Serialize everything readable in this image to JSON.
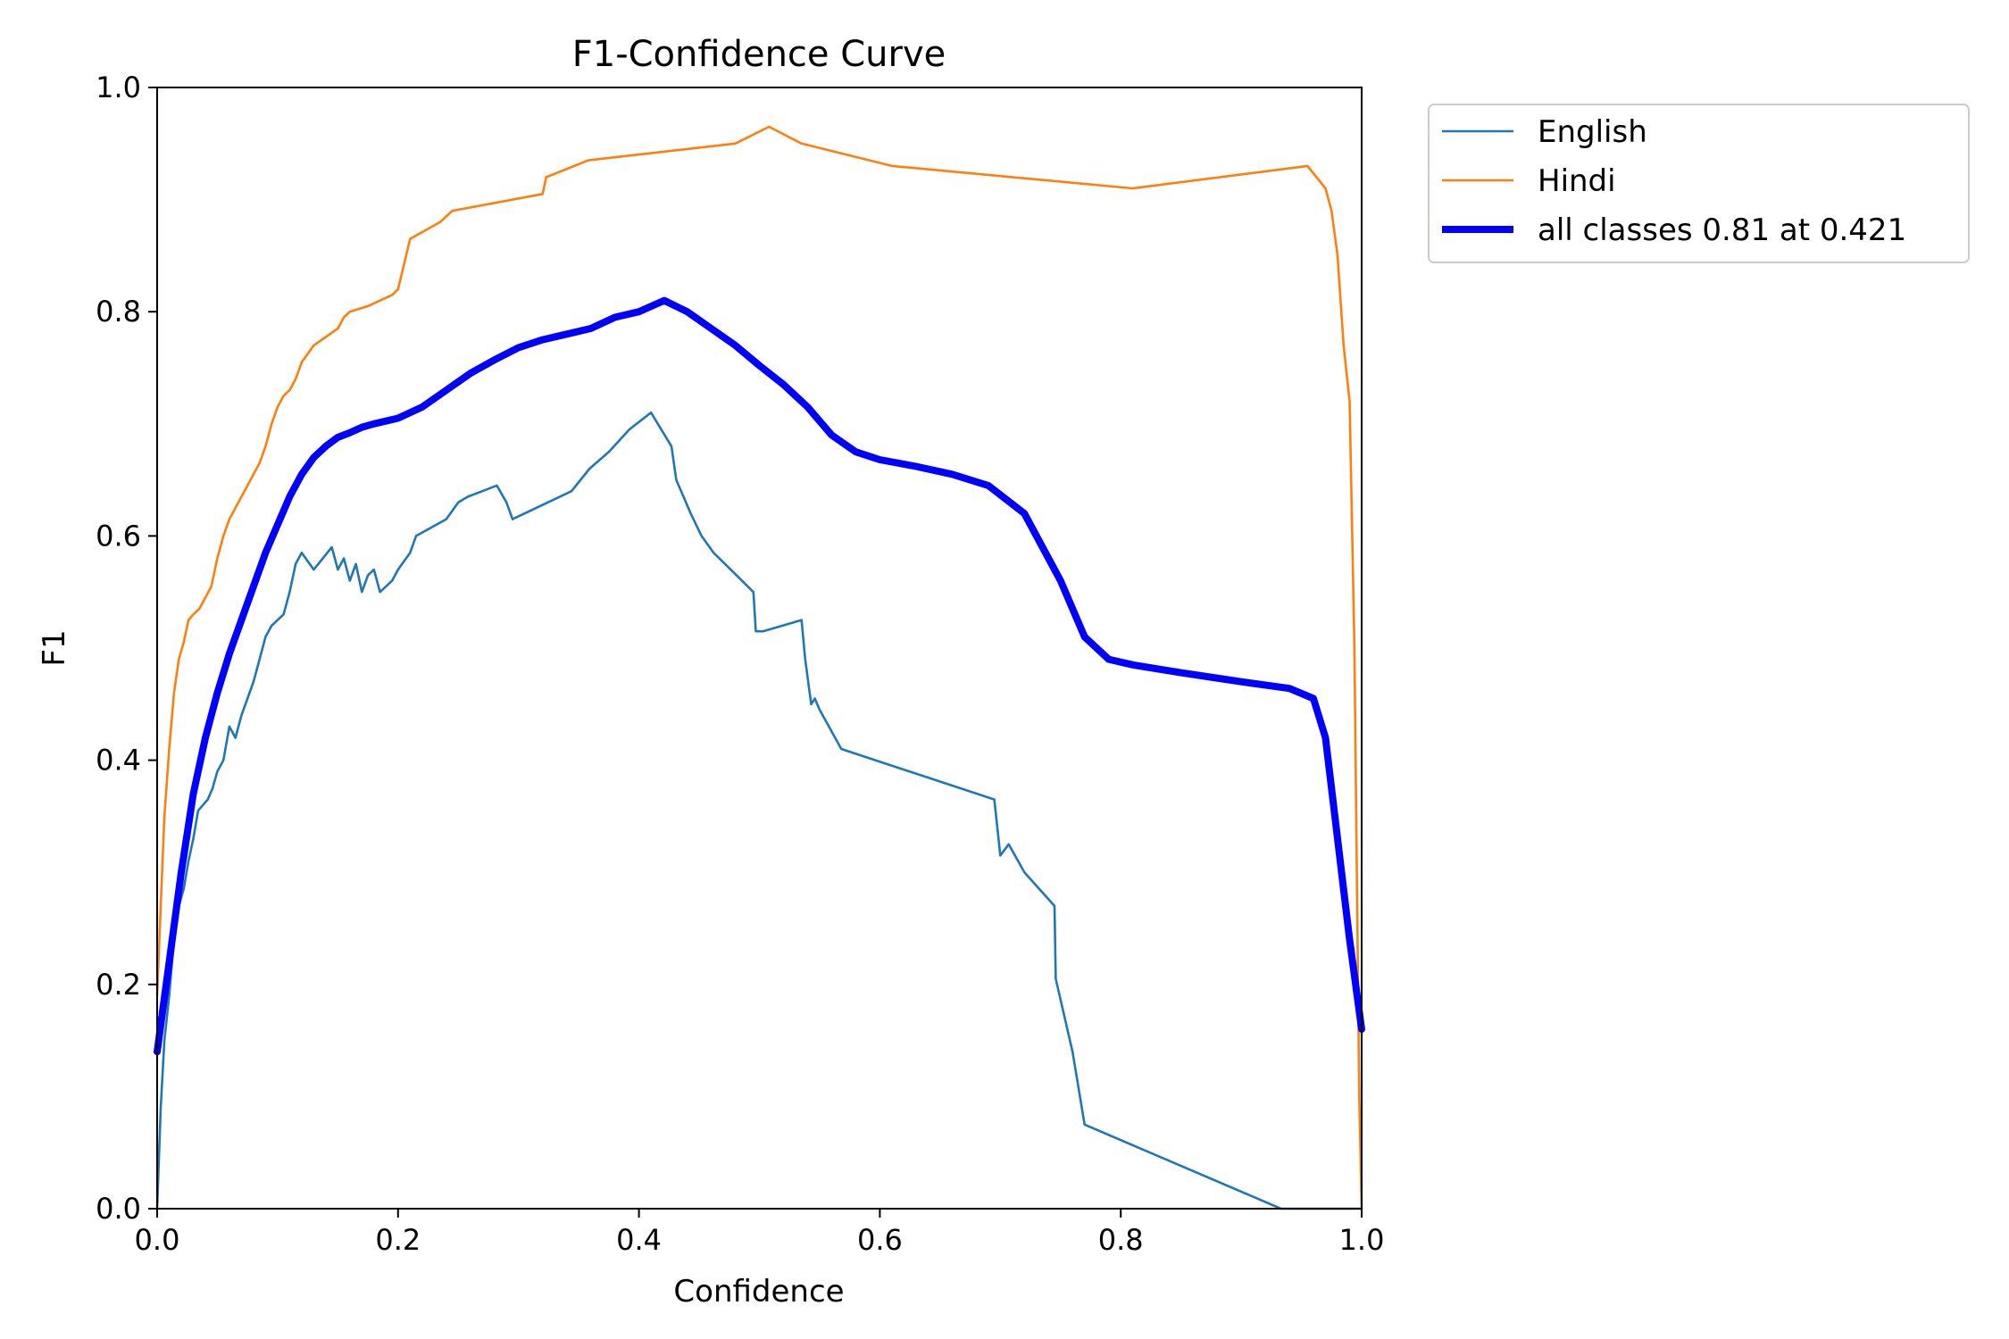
{
  "chart_data": {
    "type": "line",
    "title": "F1-Confidence Curve",
    "xlabel": "Confidence",
    "ylabel": "F1",
    "xlim": [
      0.0,
      1.0
    ],
    "ylim": [
      0.0,
      1.0
    ],
    "xticks": [
      "0.0",
      "0.2",
      "0.4",
      "0.6",
      "0.8",
      "1.0"
    ],
    "yticks": [
      "0.0",
      "0.2",
      "0.4",
      "0.6",
      "0.8",
      "1.0"
    ],
    "grid": false,
    "legend_position": "outside-upper-right",
    "series": [
      {
        "name": "English",
        "color": "#1f77b4",
        "style": "thin",
        "x": [
          0.0,
          0.003,
          0.006,
          0.01,
          0.014,
          0.018,
          0.022,
          0.026,
          0.03,
          0.034,
          0.038,
          0.042,
          0.046,
          0.05,
          0.055,
          0.06,
          0.065,
          0.07,
          0.075,
          0.08,
          0.085,
          0.09,
          0.095,
          0.1,
          0.105,
          0.11,
          0.115,
          0.12,
          0.13,
          0.145,
          0.15,
          0.155,
          0.16,
          0.165,
          0.17,
          0.175,
          0.18,
          0.185,
          0.19,
          0.195,
          0.2,
          0.21,
          0.215,
          0.24,
          0.25,
          0.258,
          0.27,
          0.282,
          0.29,
          0.295,
          0.344,
          0.359,
          0.375,
          0.392,
          0.41,
          0.427,
          0.431,
          0.443,
          0.452,
          0.462,
          0.495,
          0.497,
          0.503,
          0.535,
          0.538,
          0.543,
          0.546,
          0.55,
          0.568,
          0.695,
          0.7,
          0.707,
          0.72,
          0.745,
          0.746,
          0.76,
          0.77,
          0.933,
          1.0
        ],
        "values": [
          0.0,
          0.09,
          0.15,
          0.19,
          0.24,
          0.27,
          0.285,
          0.31,
          0.33,
          0.355,
          0.36,
          0.365,
          0.375,
          0.39,
          0.4,
          0.43,
          0.42,
          0.44,
          0.455,
          0.47,
          0.49,
          0.51,
          0.52,
          0.525,
          0.53,
          0.55,
          0.575,
          0.585,
          0.57,
          0.59,
          0.57,
          0.58,
          0.56,
          0.575,
          0.55,
          0.565,
          0.57,
          0.55,
          0.555,
          0.56,
          0.57,
          0.585,
          0.6,
          0.615,
          0.63,
          0.635,
          0.64,
          0.645,
          0.63,
          0.615,
          0.64,
          0.66,
          0.675,
          0.695,
          0.71,
          0.68,
          0.65,
          0.62,
          0.6,
          0.585,
          0.55,
          0.515,
          0.515,
          0.525,
          0.49,
          0.45,
          0.455,
          0.445,
          0.41,
          0.365,
          0.315,
          0.325,
          0.3,
          0.27,
          0.205,
          0.14,
          0.075,
          0.0,
          0.0
        ]
      },
      {
        "name": "Hindi",
        "color": "#ff7f0e",
        "style": "thin",
        "x": [
          0.0,
          0.003,
          0.006,
          0.01,
          0.014,
          0.018,
          0.022,
          0.026,
          0.03,
          0.035,
          0.04,
          0.045,
          0.05,
          0.055,
          0.06,
          0.065,
          0.07,
          0.075,
          0.08,
          0.085,
          0.09,
          0.095,
          0.1,
          0.105,
          0.11,
          0.115,
          0.12,
          0.13,
          0.15,
          0.155,
          0.16,
          0.175,
          0.195,
          0.2,
          0.21,
          0.235,
          0.245,
          0.32,
          0.323,
          0.358,
          0.48,
          0.508,
          0.535,
          0.61,
          0.81,
          0.955,
          0.97,
          0.975,
          0.98,
          0.985,
          0.99,
          0.994,
          0.996,
          0.998,
          1.0
        ],
        "values": [
          0.19,
          0.27,
          0.35,
          0.41,
          0.46,
          0.49,
          0.505,
          0.525,
          0.53,
          0.535,
          0.545,
          0.555,
          0.58,
          0.6,
          0.615,
          0.625,
          0.635,
          0.645,
          0.655,
          0.665,
          0.68,
          0.7,
          0.715,
          0.725,
          0.73,
          0.74,
          0.755,
          0.77,
          0.785,
          0.795,
          0.8,
          0.805,
          0.815,
          0.82,
          0.865,
          0.88,
          0.89,
          0.905,
          0.92,
          0.935,
          0.95,
          0.965,
          0.95,
          0.93,
          0.91,
          0.93,
          0.91,
          0.89,
          0.85,
          0.77,
          0.72,
          0.5,
          0.3,
          0.1,
          0.0
        ]
      },
      {
        "name": "all classes 0.81 at 0.421",
        "color": "#0000ff",
        "style": "thick",
        "x": [
          0.0,
          0.01,
          0.02,
          0.03,
          0.04,
          0.05,
          0.06,
          0.07,
          0.08,
          0.09,
          0.1,
          0.11,
          0.12,
          0.13,
          0.14,
          0.15,
          0.16,
          0.17,
          0.18,
          0.2,
          0.22,
          0.24,
          0.26,
          0.28,
          0.3,
          0.32,
          0.34,
          0.36,
          0.38,
          0.4,
          0.421,
          0.44,
          0.46,
          0.48,
          0.5,
          0.52,
          0.54,
          0.56,
          0.58,
          0.6,
          0.63,
          0.66,
          0.69,
          0.72,
          0.75,
          0.77,
          0.79,
          0.81,
          0.85,
          0.9,
          0.94,
          0.96,
          0.97,
          0.98,
          0.99,
          1.0
        ],
        "values": [
          0.14,
          0.22,
          0.3,
          0.37,
          0.42,
          0.46,
          0.495,
          0.525,
          0.555,
          0.585,
          0.61,
          0.635,
          0.655,
          0.67,
          0.68,
          0.688,
          0.692,
          0.697,
          0.7,
          0.705,
          0.715,
          0.73,
          0.745,
          0.757,
          0.768,
          0.775,
          0.78,
          0.785,
          0.795,
          0.8,
          0.81,
          0.8,
          0.785,
          0.77,
          0.752,
          0.735,
          0.715,
          0.69,
          0.675,
          0.668,
          0.662,
          0.655,
          0.645,
          0.62,
          0.56,
          0.51,
          0.49,
          0.485,
          0.478,
          0.47,
          0.464,
          0.455,
          0.42,
          0.33,
          0.24,
          0.16
        ]
      }
    ]
  }
}
